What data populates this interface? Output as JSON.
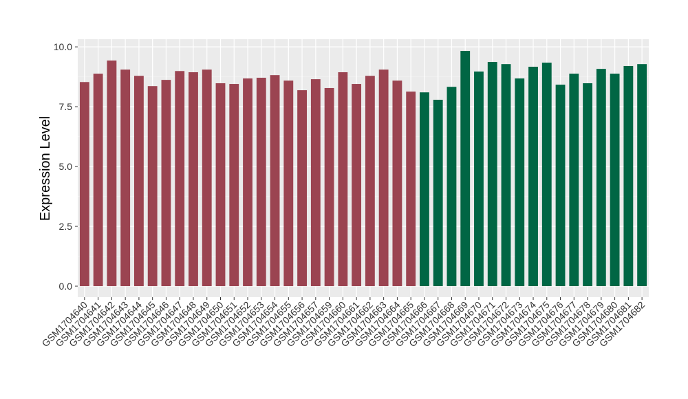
{
  "chart_data": {
    "type": "bar",
    "y_label": "Expression Level",
    "categories": [
      "GSM1704640",
      "GSM1704641",
      "GSM1704642",
      "GSM1704643",
      "GSM1704644",
      "GSM1704645",
      "GSM1704646",
      "GSM1704647",
      "GSM1704648",
      "GSM1704649",
      "GSM1704650",
      "GSM1704651",
      "GSM1704652",
      "GSM1704653",
      "GSM1704654",
      "GSM1704655",
      "GSM1704656",
      "GSM1704657",
      "GSM1704659",
      "GSM1704660",
      "GSM1704661",
      "GSM1704662",
      "GSM1704663",
      "GSM1704664",
      "GSM1704665",
      "GSM1704666",
      "GSM1704667",
      "GSM1704668",
      "GSM1704669",
      "GSM1704670",
      "GSM1704671",
      "GSM1704672",
      "GSM1704673",
      "GSM1704674",
      "GSM1704675",
      "GSM1704676",
      "GSM1704677",
      "GSM1704678",
      "GSM1704679",
      "GSM1704680",
      "GSM1704681",
      "GSM1704682"
    ],
    "values": [
      8.53,
      8.88,
      9.43,
      9.05,
      8.79,
      8.36,
      8.62,
      8.99,
      8.94,
      9.05,
      8.48,
      8.45,
      8.68,
      8.71,
      8.82,
      8.59,
      8.19,
      8.65,
      8.28,
      8.94,
      8.45,
      8.79,
      9.05,
      8.59,
      8.13,
      8.1,
      7.79,
      8.33,
      9.83,
      8.97,
      9.37,
      9.28,
      8.68,
      9.17,
      9.34,
      8.42,
      8.88,
      8.48,
      9.08,
      8.88,
      9.2,
      9.28
    ],
    "bar_colors": [
      "#9b4451",
      "#9b4451",
      "#9b4451",
      "#9b4451",
      "#9b4451",
      "#9b4451",
      "#9b4451",
      "#9b4451",
      "#9b4451",
      "#9b4451",
      "#9b4451",
      "#9b4451",
      "#9b4451",
      "#9b4451",
      "#9b4451",
      "#9b4451",
      "#9b4451",
      "#9b4451",
      "#9b4451",
      "#9b4451",
      "#9b4451",
      "#9b4451",
      "#9b4451",
      "#9b4451",
      "#9b4451",
      "#006644",
      "#006644",
      "#006644",
      "#006644",
      "#006644",
      "#006644",
      "#006644",
      "#006644",
      "#006644",
      "#006644",
      "#006644",
      "#006644",
      "#006644",
      "#006644",
      "#006644",
      "#006644",
      "#006644"
    ],
    "ylim": [
      -0.46,
      10.32
    ],
    "yticks": [
      {
        "value": 0,
        "label": "0.0"
      },
      2.5,
      {
        "value": 5,
        "label": "5.0"
      },
      7.5,
      {
        "value": 10,
        "label": "10.0"
      }
    ],
    "grid": true
  }
}
